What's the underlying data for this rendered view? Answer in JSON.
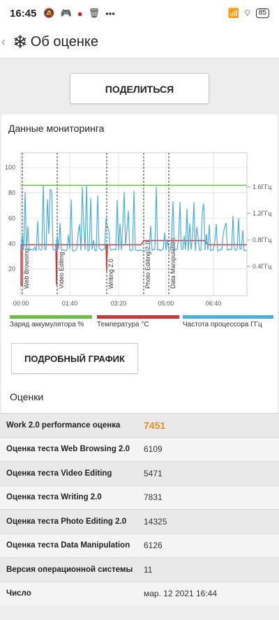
{
  "status": {
    "time": "16:45",
    "icons": [
      "mute-icon",
      "game-icon",
      "app-icon",
      "trash-icon",
      "more-icon"
    ],
    "battery": "85"
  },
  "appbar": {
    "title": "Об оценке"
  },
  "share_label": "ПОДЕЛИТЬСЯ",
  "monitoring": {
    "title": "Данные мониторинга",
    "legend": [
      {
        "label": "Заряд аккумулятора %",
        "color": "#6abf45"
      },
      {
        "label": "Температура °C",
        "color": "#c8383a"
      },
      {
        "label": "Частота процессора ГГц",
        "color": "#4aaee0"
      }
    ],
    "detail_label": "ПОДРОБНЫЙ ГРАФИК"
  },
  "chart_data": {
    "type": "line",
    "x_ticks": [
      "00:00",
      "01:40",
      "03:20",
      "05:00",
      "06:40"
    ],
    "y_left_ticks": [
      20,
      40,
      60,
      80,
      100
    ],
    "y_right_ticks": [
      "0.4ГГц",
      "0.8ГГц",
      "1.2ГГц",
      "1.6ГГц"
    ],
    "phases": [
      "Web Browsing",
      "Video Editing",
      "Writing 2.0",
      "Photo Editing 2.0",
      "Data Manipulation"
    ],
    "series": [
      {
        "name": "Заряд аккумулятора %",
        "color": "#6abf45",
        "values": [
          86,
          86
        ]
      },
      {
        "name": "Температура °C",
        "color": "#c8383a"
      },
      {
        "name": "Частота процессора ГГц",
        "color": "#4aaee0"
      }
    ]
  },
  "scores": {
    "title": "Оценки",
    "rows": [
      {
        "label": "Work 2.0 performance оценка",
        "value": "7451"
      },
      {
        "label": "Оценка теста Web Browsing 2.0",
        "value": "6109"
      },
      {
        "label": "Оценка теста Video Editing",
        "value": "5471"
      },
      {
        "label": "Оценка теста Writing 2.0",
        "value": "7831"
      },
      {
        "label": "Оценка теста Photo Editing 2.0",
        "value": "14325"
      },
      {
        "label": "Оценка теста Data Manipulation",
        "value": "6126"
      },
      {
        "label": "Версия операционной системы",
        "value": "11"
      },
      {
        "label": "Число",
        "value": "мар. 12 2021 16:44"
      }
    ]
  }
}
